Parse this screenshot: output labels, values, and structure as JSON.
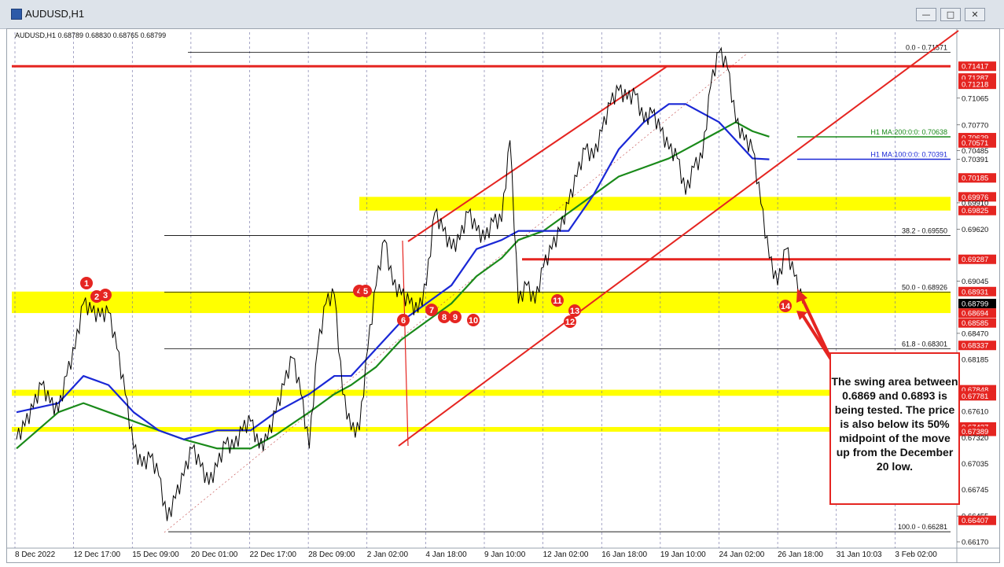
{
  "window": {
    "title": "AUDUSD,H1",
    "minimize_icon": "minimize-icon",
    "maximize_icon": "maximize-icon",
    "close_icon": "close-icon"
  },
  "chart_info": "AUDUSD,H1  0.68789 0.68830 0.68765 0.68799",
  "callout": {
    "text": "The swing area between 0.6869 and 0.6893 is being tested. The price is also below its 50% midpoint of the move up from the December 20 low."
  },
  "colors": {
    "price_line": "#000000",
    "red_lines": "#e52521",
    "yellow_zone": "#ffff00",
    "ma100": "#1a28d6",
    "ma200": "#1a8a1a",
    "grid": "#6a6aa0",
    "fib_line": "#000000"
  },
  "chart_data": {
    "type": "line",
    "symbol": "AUDUSD",
    "timeframe": "H1",
    "ylim": [
      0.6617,
      0.7174
    ],
    "price_ticks": [
      "0.71417",
      "0.71287",
      "0.71218",
      "0.71065",
      "0.70770",
      "0.70629",
      "0.70571",
      "0.70485",
      "0.70391",
      "0.70185",
      "0.69976",
      "0.69910",
      "0.69825",
      "0.69620",
      "0.69287",
      "0.69045",
      "0.68931",
      "0.68799",
      "0.68694",
      "0.68585",
      "0.68470",
      "0.68337",
      "0.68185",
      "0.67848",
      "0.67781",
      "0.67610",
      "0.67437",
      "0.67389",
      "0.67320",
      "0.67035",
      "0.66745",
      "0.66455",
      "0.66407",
      "0.66170"
    ],
    "x_ticks": [
      "8 Dec 2022",
      "12 Dec 17:00",
      "15 Dec 09:00",
      "20 Dec 01:00",
      "22 Dec 17:00",
      "28 Dec 09:00",
      "2 Jan 02:00",
      "4 Jan 18:00",
      "9 Jan 10:00",
      "12 Jan 02:00",
      "16 Jan 18:00",
      "19 Jan 10:00",
      "24 Jan 02:00",
      "26 Jan 18:00",
      "31 Jan 10:03",
      "3 Feb 02:00"
    ],
    "price_series": [
      [
        0,
        0.673
      ],
      [
        2,
        0.6745
      ],
      [
        4,
        0.6765
      ],
      [
        6,
        0.679
      ],
      [
        8,
        0.677
      ],
      [
        10,
        0.676
      ],
      [
        12,
        0.68
      ],
      [
        14,
        0.683
      ],
      [
        16,
        0.688
      ],
      [
        18,
        0.687
      ],
      [
        20,
        0.6865
      ],
      [
        22,
        0.687
      ],
      [
        24,
        0.683
      ],
      [
        26,
        0.678
      ],
      [
        28,
        0.672
      ],
      [
        30,
        0.67
      ],
      [
        32,
        0.671
      ],
      [
        34,
        0.669
      ],
      [
        36,
        0.664
      ],
      [
        38,
        0.6665
      ],
      [
        40,
        0.669
      ],
      [
        42,
        0.672
      ],
      [
        44,
        0.67
      ],
      [
        46,
        0.668
      ],
      [
        48,
        0.67
      ],
      [
        50,
        0.6725
      ],
      [
        52,
        0.672
      ],
      [
        54,
        0.674
      ],
      [
        56,
        0.675
      ],
      [
        58,
        0.672
      ],
      [
        60,
        0.673
      ],
      [
        62,
        0.676
      ],
      [
        64,
        0.679
      ],
      [
        66,
        0.682
      ],
      [
        68,
        0.678
      ],
      [
        70,
        0.672
      ],
      [
        72,
        0.683
      ],
      [
        74,
        0.688
      ],
      [
        76,
        0.689
      ],
      [
        78,
        0.678
      ],
      [
        80,
        0.674
      ],
      [
        82,
        0.674
      ],
      [
        84,
        0.683
      ],
      [
        86,
        0.69
      ],
      [
        88,
        0.695
      ],
      [
        90,
        0.69
      ],
      [
        92,
        0.689
      ],
      [
        94,
        0.688
      ],
      [
        96,
        0.687
      ],
      [
        98,
        0.69
      ],
      [
        100,
        0.698
      ],
      [
        102,
        0.696
      ],
      [
        104,
        0.694
      ],
      [
        106,
        0.695
      ],
      [
        108,
        0.698
      ],
      [
        110,
        0.696
      ],
      [
        112,
        0.695
      ],
      [
        114,
        0.697
      ],
      [
        116,
        0.697
      ],
      [
        118,
        0.706
      ],
      [
        120,
        0.688
      ],
      [
        122,
        0.69
      ],
      [
        124,
        0.688
      ],
      [
        126,
        0.692
      ],
      [
        128,
        0.694
      ],
      [
        130,
        0.696
      ],
      [
        132,
        0.699
      ],
      [
        134,
        0.702
      ],
      [
        136,
        0.705
      ],
      [
        138,
        0.704
      ],
      [
        140,
        0.707
      ],
      [
        142,
        0.71
      ],
      [
        144,
        0.7115
      ],
      [
        146,
        0.7105
      ],
      [
        148,
        0.711
      ],
      [
        150,
        0.708
      ],
      [
        152,
        0.709
      ],
      [
        154,
        0.707
      ],
      [
        156,
        0.705
      ],
      [
        158,
        0.704
      ],
      [
        160,
        0.7
      ],
      [
        162,
        0.703
      ],
      [
        164,
        0.704
      ],
      [
        166,
        0.712
      ],
      [
        168,
        0.7157
      ],
      [
        170,
        0.714
      ],
      [
        172,
        0.708
      ],
      [
        174,
        0.706
      ],
      [
        176,
        0.705
      ],
      [
        178,
        0.699
      ],
      [
        180,
        0.693
      ],
      [
        182,
        0.69
      ],
      [
        184,
        0.694
      ],
      [
        186,
        0.691
      ],
      [
        188,
        0.688
      ]
    ],
    "ma100_series": [
      [
        0,
        0.676
      ],
      [
        10,
        0.677
      ],
      [
        16,
        0.68
      ],
      [
        22,
        0.679
      ],
      [
        28,
        0.676
      ],
      [
        34,
        0.674
      ],
      [
        40,
        0.673
      ],
      [
        48,
        0.674
      ],
      [
        56,
        0.674
      ],
      [
        62,
        0.676
      ],
      [
        70,
        0.678
      ],
      [
        76,
        0.68
      ],
      [
        80,
        0.68
      ],
      [
        86,
        0.683
      ],
      [
        92,
        0.686
      ],
      [
        98,
        0.688
      ],
      [
        104,
        0.69
      ],
      [
        110,
        0.694
      ],
      [
        116,
        0.695
      ],
      [
        120,
        0.696
      ],
      [
        126,
        0.696
      ],
      [
        132,
        0.696
      ],
      [
        138,
        0.7
      ],
      [
        144,
        0.705
      ],
      [
        150,
        0.708
      ],
      [
        156,
        0.71
      ],
      [
        160,
        0.71
      ],
      [
        164,
        0.709
      ],
      [
        168,
        0.708
      ],
      [
        172,
        0.706
      ],
      [
        176,
        0.704
      ],
      [
        180,
        0.7039
      ]
    ],
    "ma200_series": [
      [
        0,
        0.672
      ],
      [
        10,
        0.676
      ],
      [
        16,
        0.677
      ],
      [
        22,
        0.676
      ],
      [
        28,
        0.675
      ],
      [
        34,
        0.674
      ],
      [
        40,
        0.673
      ],
      [
        48,
        0.672
      ],
      [
        56,
        0.672
      ],
      [
        62,
        0.6735
      ],
      [
        70,
        0.676
      ],
      [
        76,
        0.678
      ],
      [
        80,
        0.679
      ],
      [
        86,
        0.681
      ],
      [
        92,
        0.684
      ],
      [
        98,
        0.686
      ],
      [
        104,
        0.688
      ],
      [
        110,
        0.691
      ],
      [
        116,
        0.693
      ],
      [
        120,
        0.695
      ],
      [
        126,
        0.696
      ],
      [
        132,
        0.698
      ],
      [
        138,
        0.7
      ],
      [
        144,
        0.702
      ],
      [
        150,
        0.703
      ],
      [
        156,
        0.704
      ],
      [
        160,
        0.705
      ],
      [
        164,
        0.706
      ],
      [
        168,
        0.707
      ],
      [
        172,
        0.708
      ],
      [
        176,
        0.707
      ],
      [
        180,
        0.7064
      ]
    ],
    "horizontal_lines": [
      {
        "label": "0.0 - 0.71571",
        "price": 0.71571
      },
      {
        "label": "38.2 - 0.69550",
        "price": 0.6955
      },
      {
        "label": "50.0 - 0.68926",
        "price": 0.68926
      },
      {
        "label": "61.8 - 0.68301",
        "price": 0.68301
      },
      {
        "label": "100.0 - 0.66281",
        "price": 0.66281
      },
      {
        "label": "H1 MA:200:0:0: 0.70638",
        "price": 0.70638
      },
      {
        "label": "H1 MA:100:0:0: 0.70391",
        "price": 0.70391
      }
    ],
    "red_lines": [
      0.71417,
      0.69287
    ],
    "yellow_zones": [
      [
        0.69825,
        0.69976
      ],
      [
        0.68694,
        0.68931
      ],
      [
        0.67781,
        0.67848
      ],
      [
        0.67389,
        0.67437
      ]
    ],
    "numbered_points": [
      "1",
      "2",
      "3",
      "4",
      "5",
      "6",
      "7",
      "8",
      "9",
      "10",
      "11",
      "12",
      "13",
      "14"
    ],
    "channel": "ascending regression channel drawn in red"
  }
}
